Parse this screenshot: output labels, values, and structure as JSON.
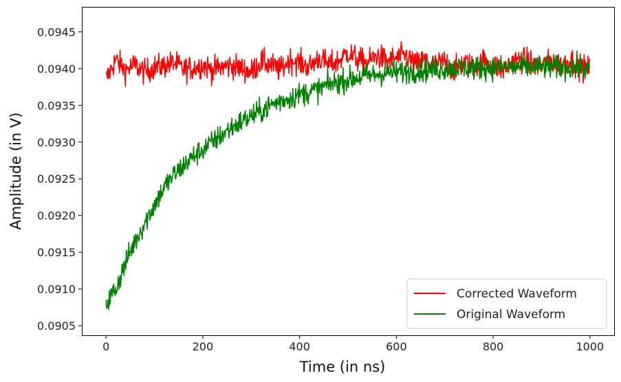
{
  "chart_data": {
    "type": "line",
    "title": "",
    "xlabel": "Time (in ns)",
    "ylabel": "Amplitude (in V)",
    "xlim": [
      -50,
      1050
    ],
    "ylim": [
      0.09037,
      0.09484
    ],
    "grid": false,
    "legend_position": "bottom-right",
    "x_ticks": [
      0,
      200,
      400,
      600,
      800,
      1000
    ],
    "x_tick_labels": [
      "0",
      "200",
      "400",
      "600",
      "800",
      "1000"
    ],
    "y_ticks": [
      0.0905,
      0.091,
      0.0915,
      0.092,
      0.0925,
      0.093,
      0.0935,
      0.094,
      0.0945
    ],
    "y_tick_labels": [
      "0.0905",
      "0.0910",
      "0.0915",
      "0.0920",
      "0.0925",
      "0.0930",
      "0.0935",
      "0.0940",
      "0.0945"
    ],
    "x": [
      0,
      20,
      40,
      60,
      80,
      100,
      120,
      140,
      160,
      180,
      200,
      220,
      240,
      260,
      280,
      300,
      320,
      340,
      360,
      380,
      400,
      420,
      440,
      460,
      480,
      500,
      520,
      540,
      560,
      580,
      600,
      620,
      640,
      660,
      680,
      700,
      720,
      740,
      760,
      780,
      800,
      820,
      840,
      860,
      880,
      900,
      920,
      940,
      960,
      980,
      1000
    ],
    "series": [
      {
        "name": "Corrected Waveform",
        "color": "#ff0000",
        "values": [
          0.09385,
          0.09412,
          0.09398,
          0.09405,
          0.09395,
          0.09402,
          0.09404,
          0.09408,
          0.09399,
          0.09401,
          0.09405,
          0.09398,
          0.09402,
          0.09404,
          0.094,
          0.09395,
          0.0941,
          0.09405,
          0.09398,
          0.09412,
          0.09408,
          0.09402,
          0.09415,
          0.09405,
          0.0941,
          0.09422,
          0.09412,
          0.09408,
          0.09418,
          0.0941,
          0.09414,
          0.09418,
          0.09405,
          0.09412,
          0.09404,
          0.0941,
          0.09398,
          0.09408,
          0.09402,
          0.0941,
          0.09405,
          0.09398,
          0.0941,
          0.09412,
          0.09408,
          0.09402,
          0.0941,
          0.09405,
          0.09412,
          0.09402,
          0.094
        ]
      },
      {
        "name": "Original Waveform",
        "color": "#008000",
        "values": [
          0.0908,
          0.091,
          0.09135,
          0.09165,
          0.0919,
          0.09215,
          0.09238,
          0.09255,
          0.09268,
          0.0928,
          0.0929,
          0.093,
          0.0931,
          0.0932,
          0.09328,
          0.09335,
          0.09342,
          0.0935,
          0.09356,
          0.0936,
          0.09365,
          0.09368,
          0.09372,
          0.09378,
          0.09382,
          0.09385,
          0.09388,
          0.0939,
          0.09392,
          0.09394,
          0.09395,
          0.09396,
          0.09397,
          0.09398,
          0.09399,
          0.094,
          0.09401,
          0.09401,
          0.09401,
          0.09401,
          0.09401,
          0.09402,
          0.09402,
          0.09402,
          0.09402,
          0.09402,
          0.09402,
          0.09402,
          0.09402,
          0.09401,
          0.09398
        ]
      }
    ]
  }
}
